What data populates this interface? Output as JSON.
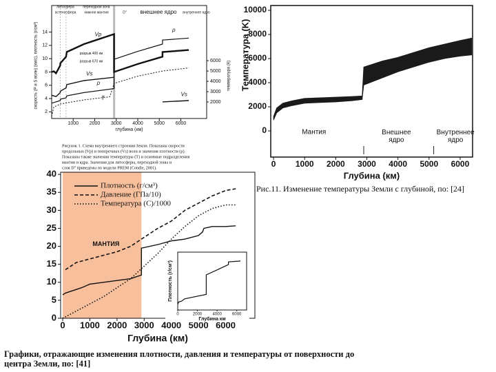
{
  "chart_data": [
    {
      "type": "line",
      "header": [
        "литосфера",
        "астеносфера",
        "переходная зона",
        "нижняя мантия",
        "D''",
        "внешнее ядро",
        "внутреннее ядро"
      ],
      "ylabel": "скорость (Р и S волн) (км/с), плотность (г/см³)",
      "y2label": "температура (К)",
      "xlabel": "глубина (км)",
      "annotations": [
        "разрыв 400 км",
        "разрыв 670 км"
      ],
      "caption": [
        "Рисунок 1. Схема внутреннего строения Земли. Показаны скорости",
        "продольных (Vp) и поперечных (Vs) волн и значения плотности (ρ).",
        "Показаны также значения температуры (T) и основные подразделения",
        "мантии и ядра. Значения для литосферы, переходной зоны и",
        "слоя D'' приведены по модели PREM (Condie, 2001)."
      ],
      "xlim": [
        0,
        7200
      ],
      "xticks": [
        1000,
        2000,
        3000,
        4000,
        5000,
        6000
      ],
      "ylim": [
        1,
        18
      ],
      "yticks": [
        2,
        4,
        6,
        8,
        10,
        12,
        14
      ],
      "y2lim": [
        400,
        11350
      ],
      "y2ticks": [
        2000,
        3000,
        4000,
        5000,
        6000
      ],
      "dividers": [
        400,
        670
      ],
      "shade": [
        2850,
        2950
      ],
      "shade_color": "#b0b0b0",
      "series": [
        {
          "name": "Vp",
          "color": "#111111",
          "width": 2.4,
          "dash": "",
          "x": [
            0,
            100,
            200,
            400,
            400,
            670,
            700,
            1500,
            2900,
            2900,
            4000,
            5150,
            5150,
            6371
          ],
          "values": [
            8,
            8.1,
            7.8,
            9,
            9.3,
            10.3,
            11,
            12.2,
            13.7,
            8,
            9.2,
            10.3,
            11,
            11.3
          ]
        },
        {
          "name": "Vs",
          "color": "#111111",
          "width": 1.4,
          "dash": "",
          "x": [
            0,
            100,
            200,
            400,
            400,
            670,
            700,
            1500,
            2900,
            5150,
            5150,
            6371
          ],
          "values": [
            4.5,
            4.4,
            4.3,
            4.9,
            5.1,
            5.6,
            6.1,
            6.7,
            7.2,
            null,
            3.5,
            3.7
          ]
        },
        {
          "name": "ρ",
          "color": "#111111",
          "width": 1.2,
          "dash": "",
          "x": [
            0,
            100,
            400,
            400,
            670,
            700,
            1500,
            2900,
            2900,
            4000,
            5150,
            5150,
            6371
          ],
          "values": [
            3.3,
            3.4,
            3.7,
            3.9,
            4.1,
            4.4,
            4.9,
            5.5,
            9.9,
            11.1,
            12.2,
            12.8,
            13.1
          ]
        },
        {
          "name": "T",
          "color": "#111111",
          "width": 1,
          "dash": "2 2",
          "axis": "y2",
          "x": [
            0,
            100,
            400,
            670,
            1500,
            2700,
            2900,
            4000,
            5150,
            6371
          ],
          "values": [
            600,
            1500,
            1800,
            1900,
            2200,
            2500,
            3800,
            4500,
            5000,
            5300
          ]
        }
      ]
    },
    {
      "type": "band",
      "ylabel": "Температура (K)",
      "xlabel": "Глубина (км)",
      "regions": [
        "Мантия",
        "Внешнее ядро",
        "Внутреннее ядро"
      ],
      "caption": "Рис.11. Изменение температуры Земли с глубиной, по: [24]",
      "xlim": [
        -90,
        6400
      ],
      "xticks": [
        0,
        1000,
        2000,
        3000,
        4000,
        5000,
        6000
      ],
      "ylim": [
        -2170,
        10400
      ],
      "yticks": [
        0,
        2000,
        4000,
        6000,
        8000,
        10000
      ],
      "dividers": [
        2900,
        5150
      ],
      "color": "#1a1a1a",
      "x": [
        0,
        100,
        300,
        600,
        1000,
        1500,
        2000,
        2500,
        2850,
        2900,
        3500,
        4000,
        4500,
        5000,
        5500,
        6000,
        6371
      ],
      "low": [
        900,
        1500,
        1900,
        2100,
        2300,
        2350,
        2400,
        2500,
        2600,
        3800,
        4400,
        4900,
        5300,
        5700,
        6000,
        6200,
        6300
      ],
      "high": [
        1200,
        1900,
        2300,
        2500,
        2700,
        2750,
        2800,
        2850,
        2900,
        5300,
        5800,
        6100,
        6500,
        6900,
        7200,
        7500,
        7700
      ]
    },
    {
      "type": "line",
      "xlabel": "Глубина (км)",
      "annotations": [
        "МАНТИЯ"
      ],
      "caption": [
        "Графики, отражающие изменения плотности, давления и температуры от поверхности до",
        "центра Земли, по: [41]"
      ],
      "xlim": [
        -77,
        7077
      ],
      "xticks": [
        0,
        1000,
        2000,
        3000,
        4000,
        5000,
        6000
      ],
      "ylim": [
        0,
        40.6
      ],
      "yticks": [
        0,
        5,
        10,
        15,
        20,
        25,
        30,
        35,
        40
      ],
      "shade": [
        0,
        2900
      ],
      "shade_color": "#f6b48a",
      "legend": "top-left",
      "series": [
        {
          "name": "Плотность (г/см³)",
          "color": "#111111",
          "width": 1.4,
          "dash": "",
          "x": [
            0,
            100,
            300,
            700,
            1000,
            1500,
            2000,
            2500,
            2900,
            2900,
            3500,
            4000,
            4500,
            5000,
            5150,
            5200,
            5500,
            6000,
            6371
          ],
          "values": [
            6.5,
            7,
            7.5,
            8.5,
            9.5,
            10,
            10.5,
            11,
            12,
            19.5,
            20.5,
            21.5,
            22,
            23,
            24,
            25,
            25.5,
            25.5,
            25.7
          ]
        },
        {
          "name": "Давление (ГПа/10)",
          "color": "#111111",
          "width": 1.6,
          "dash": "5 3",
          "x": [
            100,
            500,
            1000,
            1500,
            2000,
            2500,
            2900,
            3500,
            4000,
            4500,
            5000,
            5500,
            6000,
            6371
          ],
          "values": [
            13.5,
            15.5,
            16.5,
            17.5,
            18.5,
            20,
            22,
            25,
            27,
            30,
            32,
            34,
            35.5,
            36
          ]
        },
        {
          "name": "Температура (С)/1000",
          "color": "#111111",
          "width": 1.6,
          "dash": "1.5 2.5",
          "x": [
            0,
            500,
            1000,
            1500,
            2000,
            2500,
            3000,
            3500,
            4000,
            4500,
            5000,
            5500,
            6000,
            6371
          ],
          "values": [
            0,
            2,
            4,
            6,
            8.5,
            11,
            14.5,
            18,
            22,
            25.5,
            28.5,
            30.5,
            31.5,
            31.5
          ]
        }
      ]
    },
    {
      "type": "line",
      "xlabel": "Глубина км",
      "ylabel": "Плотность (г/см³)",
      "xlim": [
        0,
        7000
      ],
      "xticks": [
        0,
        2000,
        4000,
        6000
      ],
      "ylim": [
        2,
        15
      ],
      "series": [
        {
          "name": null,
          "color": "#111111",
          "width": 1.2,
          "dash": "",
          "x": [
            0,
            100,
            400,
            700,
            2900,
            2900,
            4000,
            5150,
            5150,
            6371
          ],
          "values": [
            3.3,
            3.8,
            4,
            4.5,
            5.5,
            9.9,
            11,
            12.2,
            12.8,
            13
          ]
        }
      ]
    }
  ]
}
